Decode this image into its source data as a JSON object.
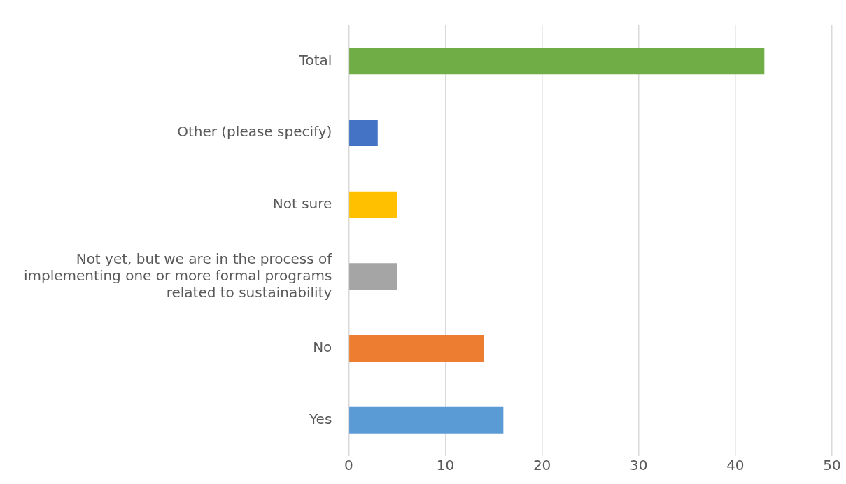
{
  "chart_data": {
    "type": "bar",
    "orientation": "horizontal",
    "categories": [
      "Total",
      "Other (please specify)",
      "Not sure",
      "Not yet, but we are in the process of implementing one or more formal programs related to sustainability",
      "No",
      "Yes"
    ],
    "values": [
      43,
      3,
      5,
      5,
      14,
      16
    ],
    "colors": [
      "#70ad47",
      "#4472c4",
      "#ffc000",
      "#a5a5a5",
      "#ed7d31",
      "#5b9bd5"
    ],
    "xlim": [
      0,
      50
    ],
    "xticks": [
      0,
      10,
      20,
      30,
      40,
      50
    ],
    "grid": "x",
    "legend": false
  }
}
